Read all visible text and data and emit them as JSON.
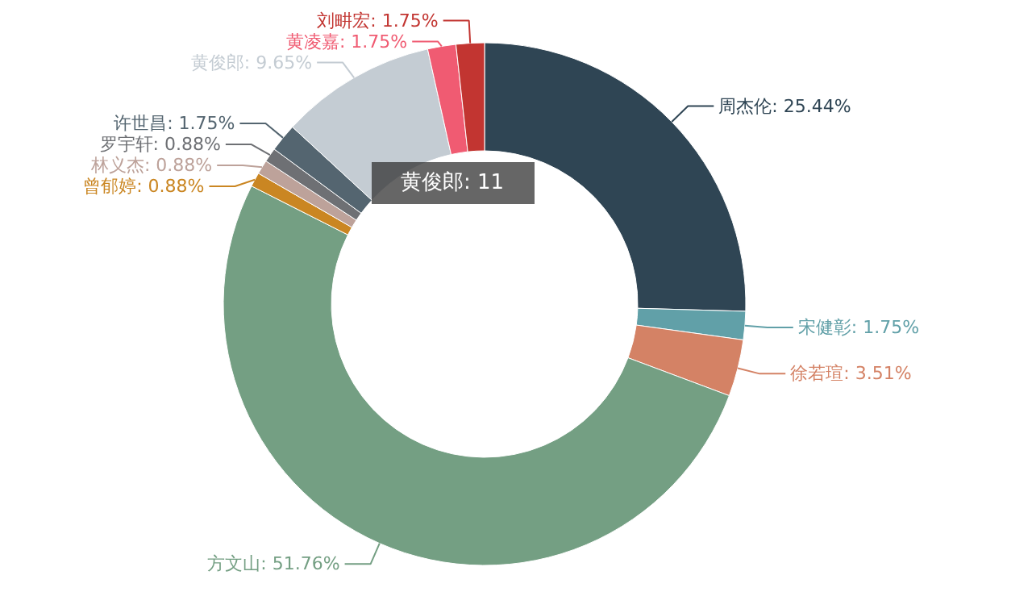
{
  "chart_data": {
    "type": "donut",
    "categories": [
      "周杰伦",
      "宋健彰",
      "徐若瑄",
      "方文山",
      "曾郁婷",
      "林义杰",
      "罗宇轩",
      "许世昌",
      "黄俊郎",
      "黄凌嘉",
      "刘畊宏"
    ],
    "values": [
      25.44,
      1.75,
      3.51,
      51.76,
      0.88,
      0.88,
      0.88,
      1.75,
      9.65,
      1.75,
      1.75
    ],
    "colors": [
      "#2f4554",
      "#61a0a8",
      "#d48265",
      "#749f83",
      "#ca8622",
      "#bda29a",
      "#6e7074",
      "#546570",
      "#c4ccd3",
      "#f05b72",
      "#c23531"
    ],
    "value_labels": [
      "25.44%",
      "1.75%",
      "3.51%",
      "51.76%",
      "0.88%",
      "0.88%",
      "0.88%",
      "1.75%",
      "9.65%",
      "1.75%",
      "1.75%"
    ],
    "annotations": [
      "黄俊郎: 11"
    ]
  }
}
